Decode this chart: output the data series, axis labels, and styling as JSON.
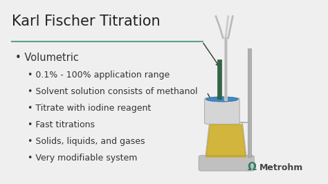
{
  "title": "Karl Fischer Titration",
  "title_fontsize": 15,
  "title_color": "#222222",
  "background_color": "#efefef",
  "divider_color": "#5ba08a",
  "bullet_main": "Volumetric",
  "bullet_main_fontsize": 10.5,
  "sub_bullets": [
    "0.1% - 100% application range",
    "Solvent solution consists of methanol",
    "Titrate with iodine reagent",
    "Fast titrations",
    "Solids, liquids, and gases",
    "Very modifiable system"
  ],
  "sub_bullet_fontsize": 9,
  "text_color": "#333333",
  "metrohm_text": "Metrohm",
  "metrohm_color": "#444444",
  "metrohm_fontsize": 9,
  "logo_color": "#2e7d62",
  "arrow_color": "#333333"
}
